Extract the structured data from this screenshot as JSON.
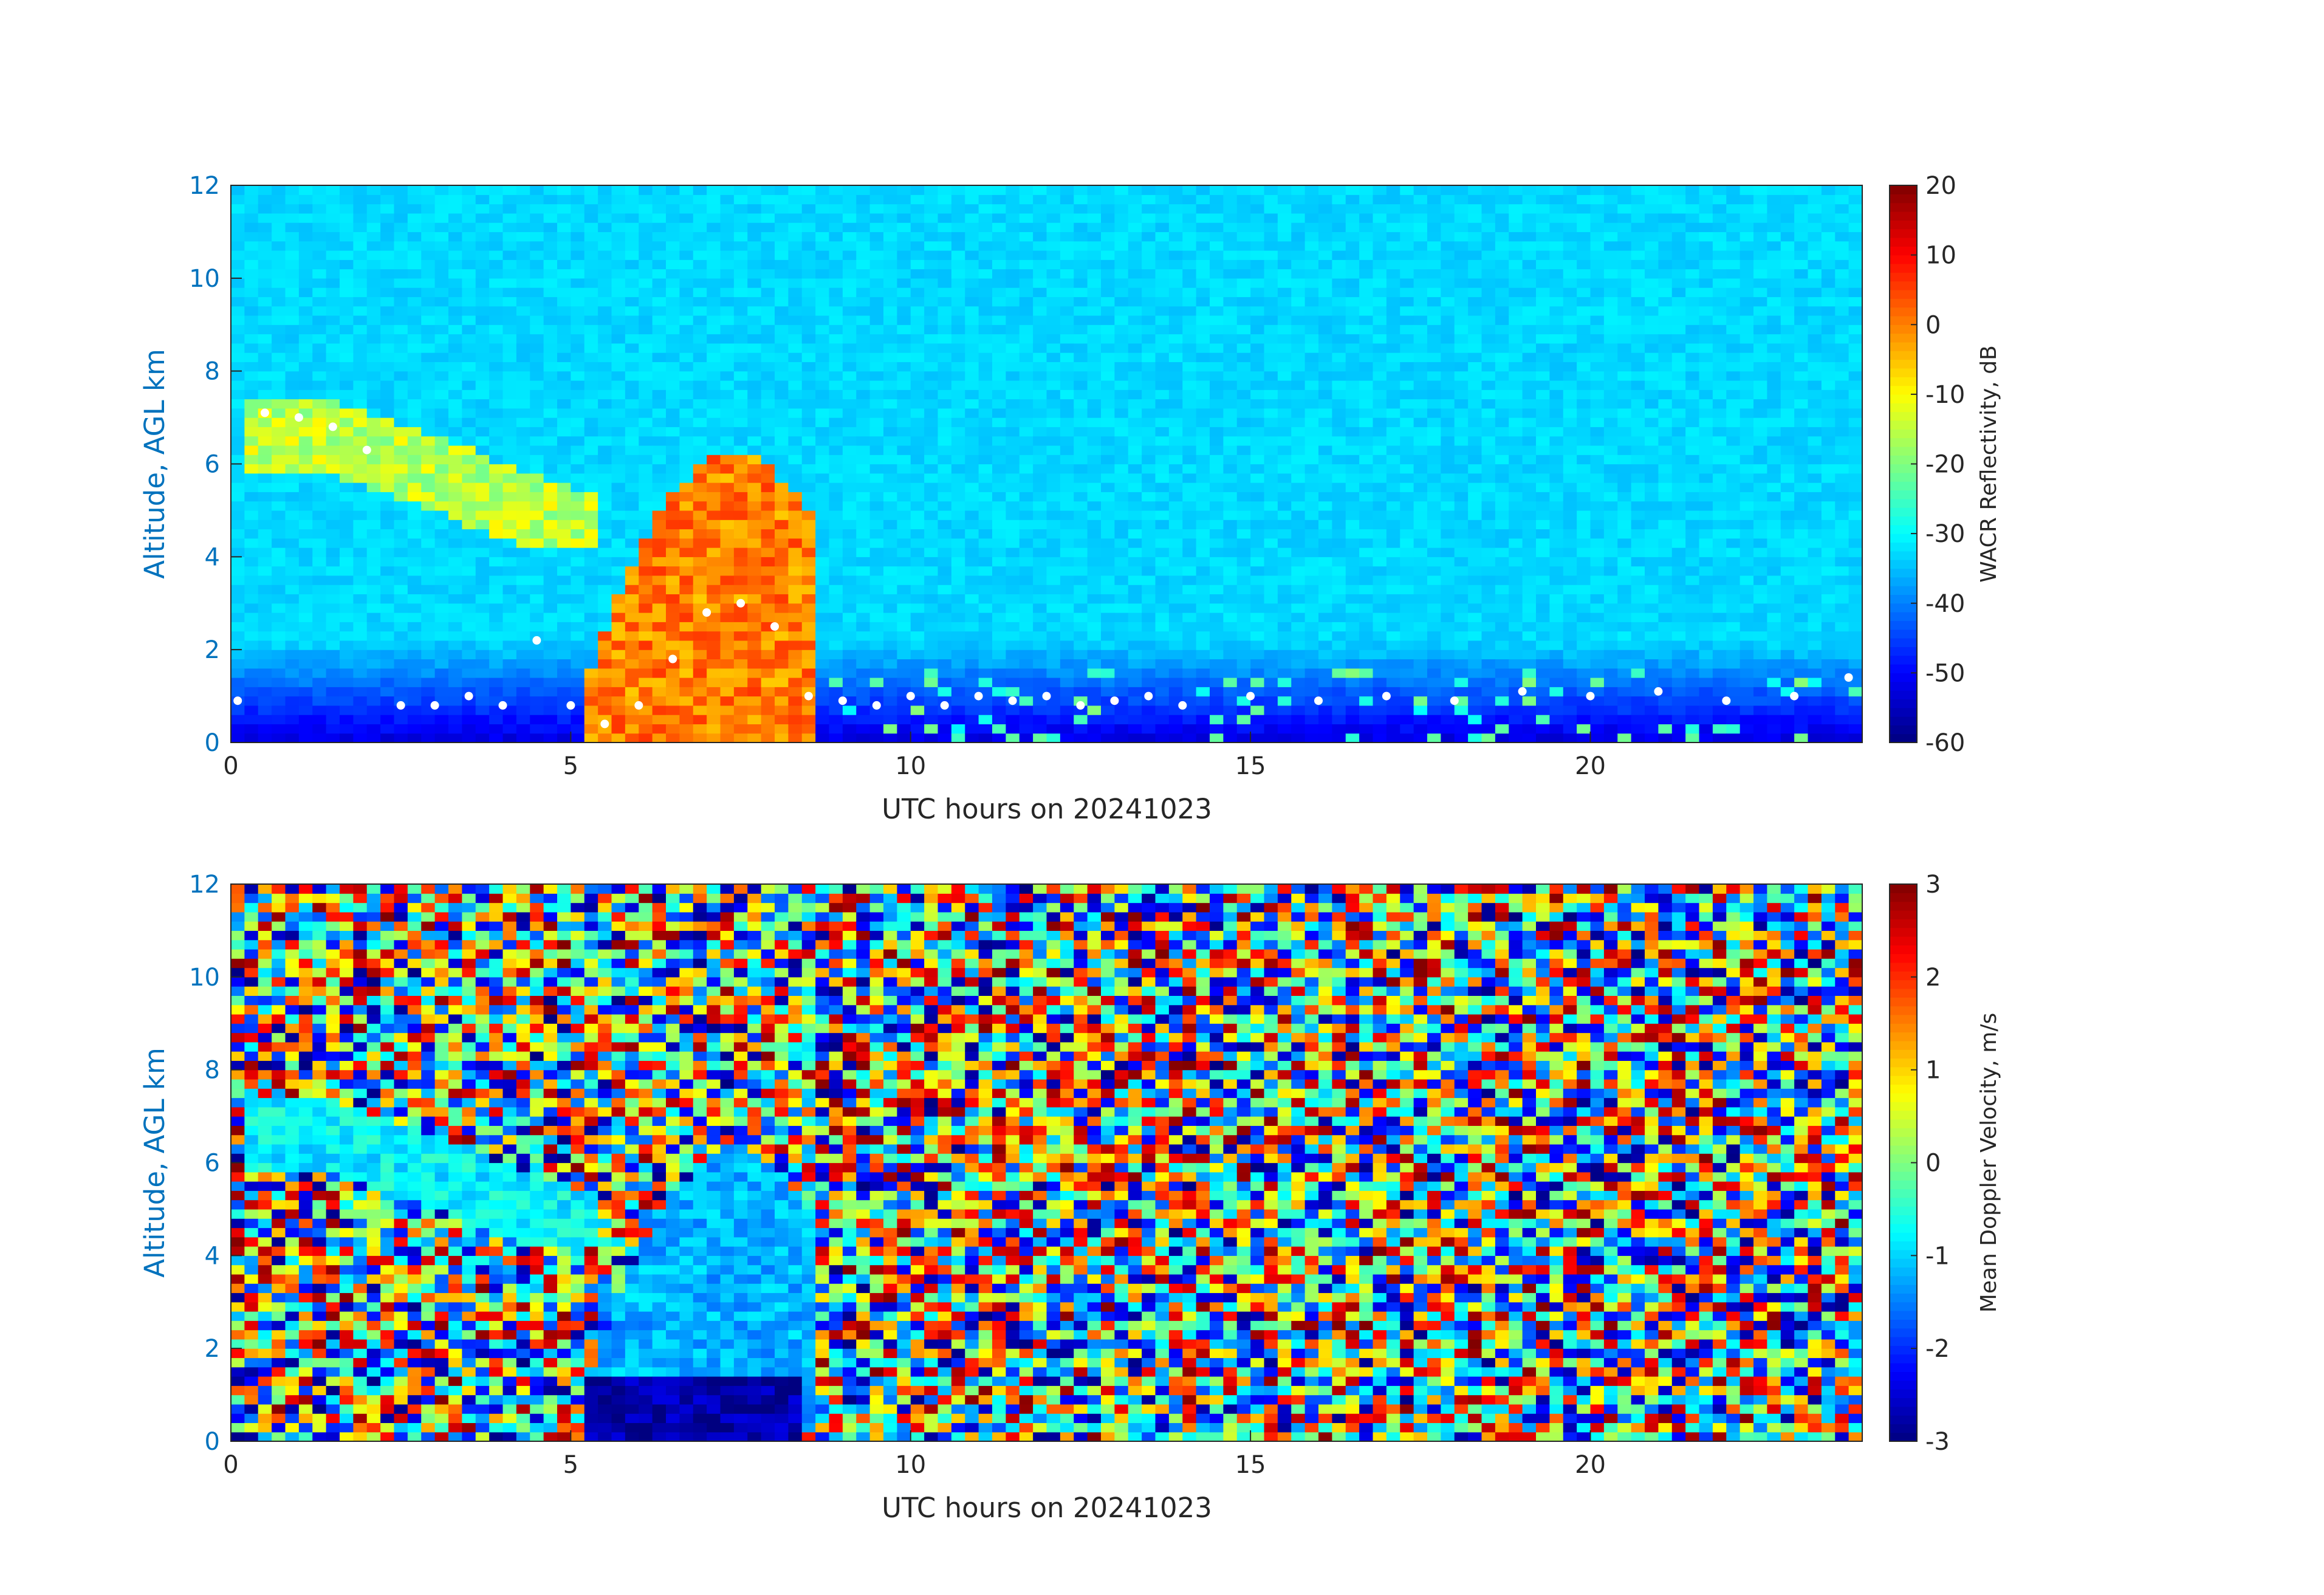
{
  "colors": {
    "y_axis_color": "#0072BD",
    "x_axis_color": "#262626",
    "colormap": "jet",
    "melting_level_dots": "#ffffff"
  },
  "chart_data": [
    {
      "type": "heatmap",
      "panel": "top",
      "xlabel": "UTC hours on 20241023",
      "ylabel": "Altitude, AGL km",
      "xlim": [
        0,
        24
      ],
      "ylim": [
        0,
        12
      ],
      "x_ticks": [
        "0",
        "5",
        "10",
        "15",
        "20"
      ],
      "y_ticks": [
        "0",
        "2",
        "4",
        "6",
        "8",
        "10",
        "12"
      ],
      "colorbar": {
        "label": "WACR Reflectivity, dB",
        "range": [
          -60,
          20
        ],
        "ticks": [
          "-60",
          "-50",
          "-40",
          "-30",
          "-20",
          "-10",
          "0",
          "10",
          "20"
        ]
      },
      "features": [
        {
          "name": "cirrus layer",
          "x": [
            0.3,
            5.4
          ],
          "y": [
            4.2,
            7.4
          ],
          "value_dB": -15
        },
        {
          "name": "deep precipitating cloud",
          "x": [
            5.2,
            8.6
          ],
          "y": [
            0,
            6.2
          ],
          "value_dB": 0
        },
        {
          "name": "shallow boundary-layer clouds",
          "x": [
            8.6,
            24
          ],
          "y": [
            0,
            2.3
          ],
          "value_dB": -25
        },
        {
          "name": "clear-air background",
          "x": [
            0,
            24
          ],
          "y": [
            0,
            12
          ],
          "value_dB": -35
        }
      ],
      "overlay_points": {
        "label": "cloud-base detections (white)",
        "x": [
          0.1,
          0.5,
          1.0,
          1.5,
          2.0,
          2.5,
          3.0,
          3.5,
          4.0,
          4.5,
          5.0,
          5.5,
          6.0,
          6.5,
          7.0,
          7.5,
          8.0,
          8.5,
          9.0,
          9.5,
          10.0,
          10.5,
          11.0,
          11.5,
          12.0,
          12.5,
          13.0,
          13.5,
          14.0,
          15.0,
          16.0,
          17.0,
          18.0,
          19.0,
          20.0,
          21.0,
          22.0,
          23.0,
          23.8
        ],
        "y": [
          0.9,
          7.1,
          7.0,
          6.8,
          6.3,
          0.8,
          0.8,
          1.0,
          0.8,
          2.2,
          0.8,
          0.4,
          0.8,
          1.8,
          2.8,
          3.0,
          2.5,
          1.0,
          0.9,
          0.8,
          1.0,
          0.8,
          1.0,
          0.9,
          1.0,
          0.8,
          0.9,
          1.0,
          0.8,
          1.0,
          0.9,
          1.0,
          0.9,
          1.1,
          1.0,
          1.1,
          0.9,
          1.0,
          1.4
        ]
      }
    },
    {
      "type": "heatmap",
      "panel": "bottom",
      "xlabel": "UTC hours on 20241023",
      "ylabel": "Altitude, AGL km",
      "xlim": [
        0,
        24
      ],
      "ylim": [
        0,
        12
      ],
      "x_ticks": [
        "0",
        "5",
        "10",
        "15",
        "20"
      ],
      "y_ticks": [
        "0",
        "2",
        "4",
        "6",
        "8",
        "10",
        "12"
      ],
      "colorbar": {
        "label": "Mean Doppler Velocity, m/s",
        "range": [
          -3,
          3
        ],
        "ticks": [
          "-3",
          "-2",
          "-1",
          "0",
          "1",
          "2",
          "3"
        ]
      },
      "features": [
        {
          "name": "cirrus layer",
          "x": [
            0.3,
            5.4
          ],
          "y": [
            4.2,
            7.4
          ],
          "value_ms": -0.8
        },
        {
          "name": "deep precipitating cloud",
          "x": [
            5.2,
            8.6
          ],
          "y": [
            0.2,
            6.2
          ],
          "value_ms": -1.2
        },
        {
          "name": "rain below",
          "x": [
            5.3,
            8.3
          ],
          "y": [
            0,
            1.3
          ],
          "value_ms": -2.8
        },
        {
          "name": "shallow boundary-layer clouds",
          "x": [
            8.6,
            24
          ],
          "y": [
            0,
            1.8
          ],
          "value_ms": -1.0
        },
        {
          "name": "noise background",
          "x": [
            0,
            24
          ],
          "y": [
            0,
            12
          ],
          "value_ms": "random"
        }
      ]
    }
  ]
}
